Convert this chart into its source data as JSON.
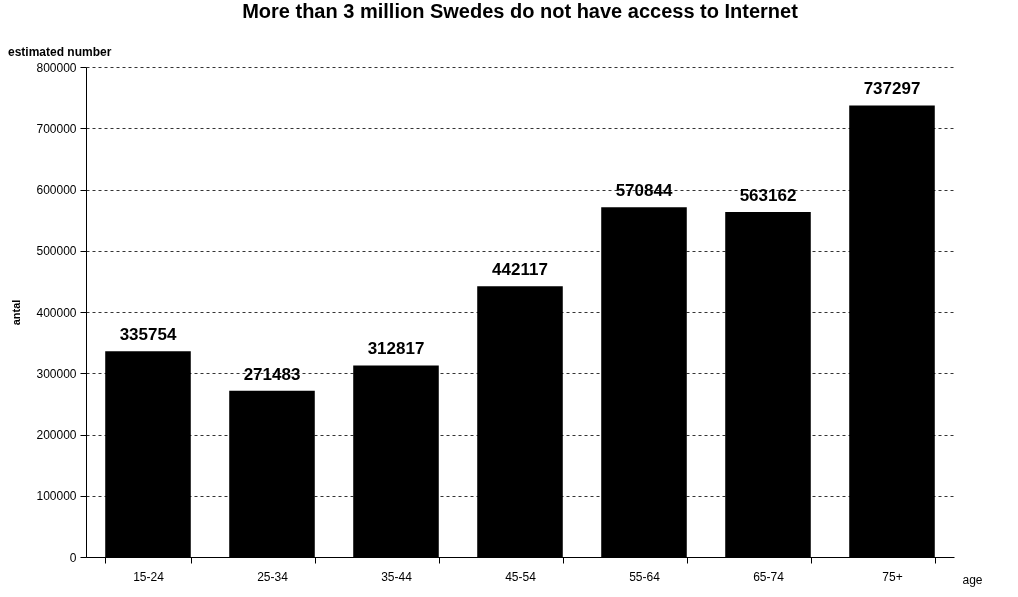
{
  "chart_data": {
    "type": "bar",
    "title": "More than 3 million Swedes do not have access to Internet",
    "ylabel": "antal",
    "xlabel": "age",
    "annotations": [
      "estimated number"
    ],
    "categories": [
      "15-24",
      "25-34",
      "35-44",
      "45-54",
      "55-64",
      "65-74",
      "75+"
    ],
    "values": [
      335754,
      271483,
      312817,
      442117,
      570844,
      563162,
      737297
    ],
    "color": "#000000",
    "ylim": [
      0,
      800000
    ],
    "yticks": [
      0,
      100000,
      200000,
      300000,
      400000,
      500000,
      600000,
      700000,
      800000
    ],
    "grid": "y",
    "data_labels": true
  }
}
